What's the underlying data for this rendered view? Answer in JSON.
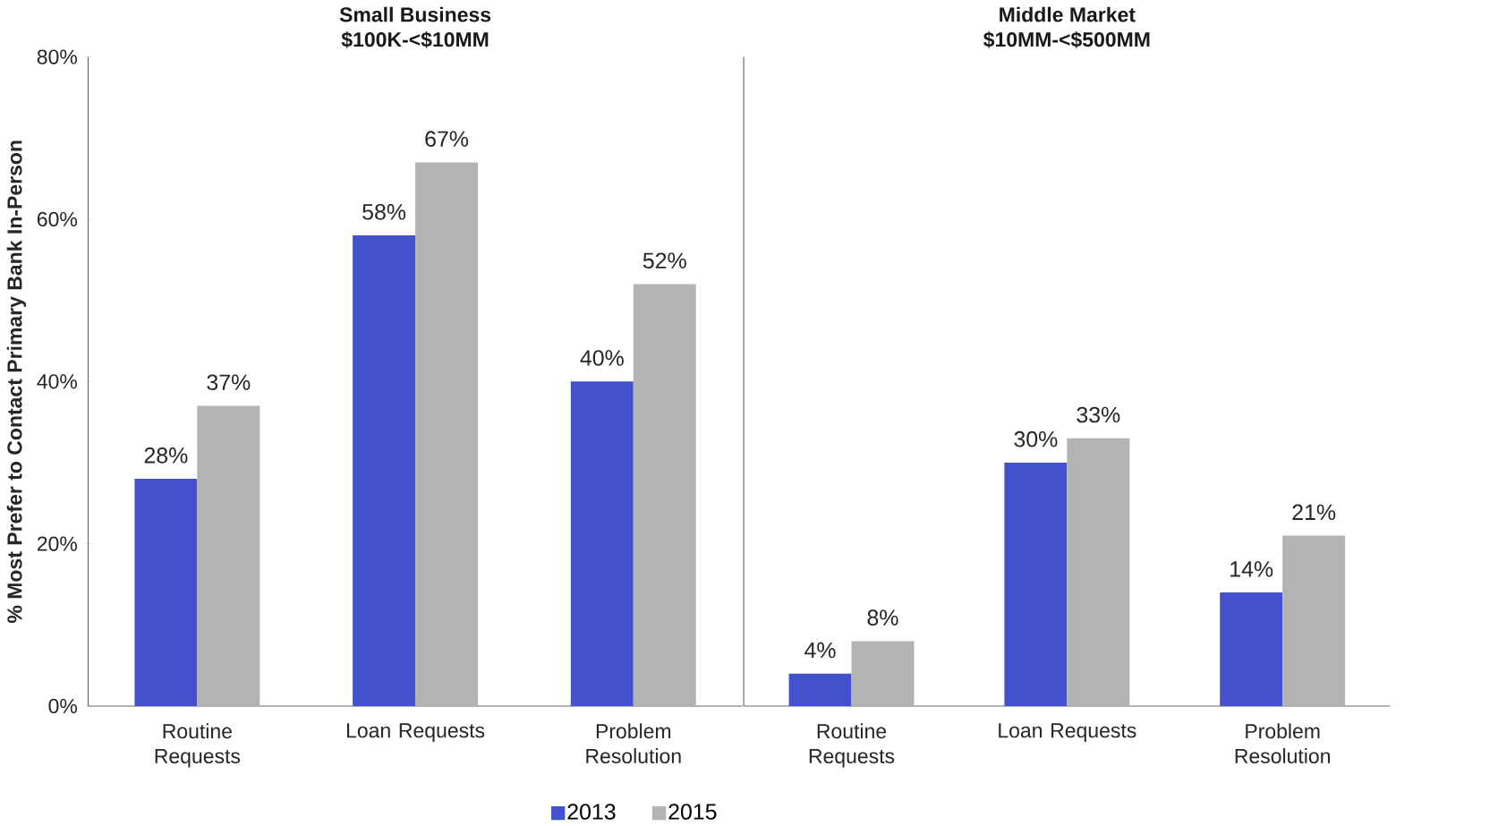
{
  "chart_data": [
    {
      "type": "bar",
      "title": "Small Business",
      "subtitle": "$100K-<$10MM",
      "ylabel": "% Most Prefer to Contact Primary Bank In-Person",
      "categories": [
        "Routine Requests",
        "Loan Requests",
        "Problem Resolution"
      ],
      "series": [
        {
          "name": "2013",
          "color": "#4351cc",
          "values": [
            28,
            58,
            40
          ],
          "value_labels": [
            "28%",
            "58%",
            "40%"
          ]
        },
        {
          "name": "2015",
          "color": "#b3b3b3",
          "values": [
            37,
            67,
            52
          ],
          "value_labels": [
            "37%",
            "67%",
            "52%"
          ]
        }
      ],
      "ylim": [
        0,
        80
      ],
      "yticks": [
        {
          "value": 0,
          "label": "0%"
        },
        {
          "value": 20,
          "label": "20%"
        },
        {
          "value": 40,
          "label": "40%"
        },
        {
          "value": 60,
          "label": "60%"
        },
        {
          "value": 80,
          "label": "80%"
        }
      ],
      "legend": "bottom"
    },
    {
      "type": "bar",
      "title": "Middle Market",
      "subtitle": "$10MM-<$500MM",
      "categories": [
        "Routine Requests",
        "Loan Requests",
        "Problem Resolution"
      ],
      "series": [
        {
          "color": "#4351cc",
          "values": [
            4,
            30,
            14
          ],
          "value_labels": [
            "4%",
            "30%",
            "14%"
          ]
        },
        {
          "color": "#b3b3b3",
          "values": [
            8,
            33,
            21
          ],
          "value_labels": [
            "8%",
            "33%",
            "21%"
          ]
        }
      ],
      "ylim": [
        0,
        80
      ],
      "tick_labels": "x"
    }
  ]
}
